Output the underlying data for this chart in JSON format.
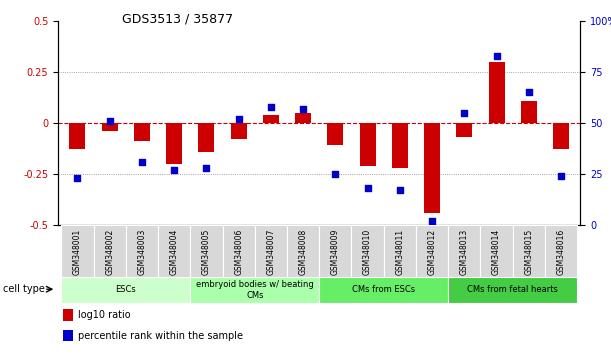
{
  "title": "GDS3513 / 35877",
  "samples": [
    "GSM348001",
    "GSM348002",
    "GSM348003",
    "GSM348004",
    "GSM348005",
    "GSM348006",
    "GSM348007",
    "GSM348008",
    "GSM348009",
    "GSM348010",
    "GSM348011",
    "GSM348012",
    "GSM348013",
    "GSM348014",
    "GSM348015",
    "GSM348016"
  ],
  "log10_ratio": [
    -0.13,
    -0.04,
    -0.09,
    -0.2,
    -0.14,
    -0.08,
    0.04,
    0.05,
    -0.11,
    -0.21,
    -0.22,
    -0.44,
    -0.07,
    0.3,
    0.11,
    -0.13
  ],
  "percentile_rank": [
    23,
    51,
    31,
    27,
    28,
    52,
    58,
    57,
    25,
    18,
    17,
    2,
    55,
    83,
    65,
    24
  ],
  "ylim_left": [
    -0.5,
    0.5
  ],
  "ylim_right": [
    0,
    100
  ],
  "yticks_left": [
    -0.5,
    -0.25,
    0,
    0.25,
    0.5
  ],
  "yticks_right": [
    0,
    25,
    50,
    75,
    100
  ],
  "bar_color": "#cc0000",
  "dot_color": "#0000cc",
  "zero_line_color": "#cc0000",
  "cell_type_groups": [
    {
      "label": "ESCs",
      "start": 0,
      "end": 3,
      "color": "#ccffcc"
    },
    {
      "label": "embryoid bodies w/ beating\nCMs",
      "start": 4,
      "end": 7,
      "color": "#aaffaa"
    },
    {
      "label": "CMs from ESCs",
      "start": 8,
      "end": 11,
      "color": "#66ee66"
    },
    {
      "label": "CMs from fetal hearts",
      "start": 12,
      "end": 15,
      "color": "#44cc44"
    }
  ],
  "legend_bar_label": "log10 ratio",
  "legend_dot_label": "percentile rank within the sample",
  "cell_type_label": "cell type"
}
